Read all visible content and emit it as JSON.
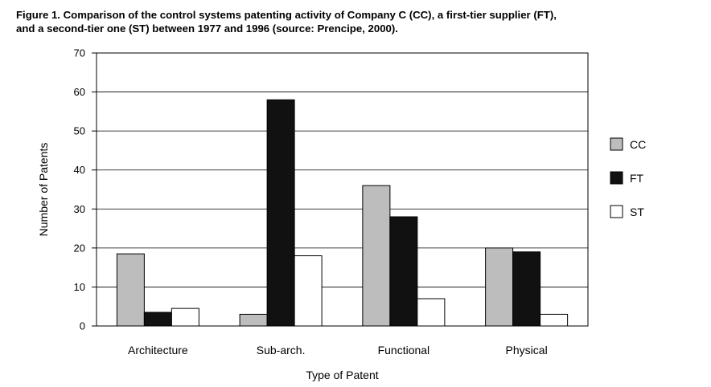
{
  "caption": {
    "line1": "Figure 1. Comparison of the control systems patenting activity of Company C (CC), a first-tier supplier (FT),",
    "line2": "and a second-tier one (ST) between 1977 and 1996 (source: Prencipe, 2000)."
  },
  "chart_data": {
    "type": "bar",
    "title": "",
    "xlabel": "Type of Patent",
    "ylabel": "Number of Patents",
    "categories": [
      "Architecture",
      "Sub-arch.",
      "Functional",
      "Physical"
    ],
    "series": [
      {
        "name": "CC",
        "values": [
          18.5,
          3,
          36,
          20
        ],
        "color": "#bdbdbd"
      },
      {
        "name": "FT",
        "values": [
          3.5,
          58,
          28,
          19
        ],
        "color": "#111111"
      },
      {
        "name": "ST",
        "values": [
          4.5,
          18,
          7,
          3
        ],
        "color": "#ffffff"
      }
    ],
    "ylim": [
      0,
      70
    ],
    "yticks": [
      0,
      10,
      20,
      30,
      40,
      50,
      60,
      70
    ],
    "grid": true,
    "legend": "right"
  }
}
